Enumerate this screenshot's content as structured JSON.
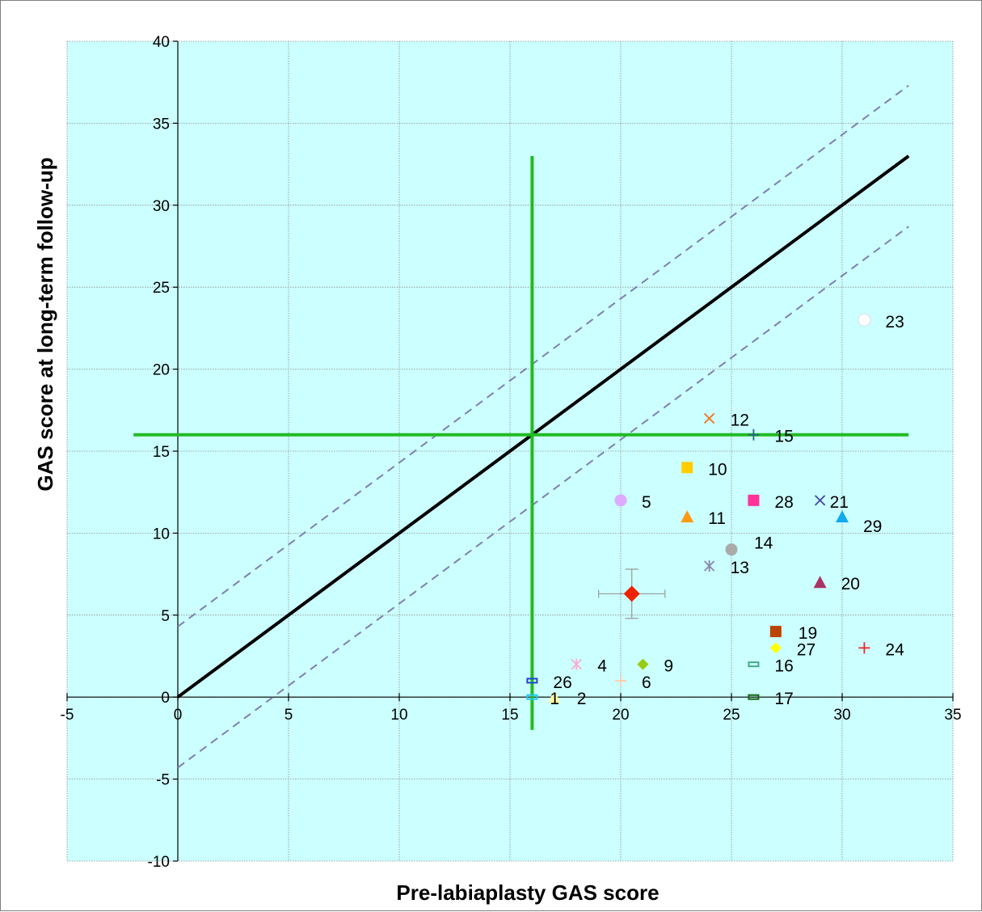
{
  "chart_data": {
    "type": "scatter",
    "xlabel": "Pre-labiaplasty GAS score",
    "ylabel": "GAS score at long-term follow-up",
    "xlim": [
      -5,
      35
    ],
    "ylim": [
      -10,
      40
    ],
    "xticks": [
      -5,
      0,
      5,
      10,
      15,
      20,
      25,
      30,
      35
    ],
    "yticks": [
      -10,
      -5,
      0,
      5,
      10,
      15,
      20,
      25,
      30,
      35,
      40
    ],
    "grid": true,
    "plot_background": "#ccffff",
    "reference_lines": [
      {
        "name": "identity",
        "x": [
          0,
          33
        ],
        "y": [
          0,
          33
        ],
        "style": "solid",
        "color": "#000000"
      },
      {
        "name": "upper-limit",
        "x": [
          0,
          33
        ],
        "y": [
          4.3,
          37.3
        ],
        "style": "dashed",
        "color": "#7f7fb0"
      },
      {
        "name": "lower-limit",
        "x": [
          0,
          33
        ],
        "y": [
          -4.3,
          28.7
        ],
        "style": "dashed",
        "color": "#7f7fb0"
      },
      {
        "name": "cutoff-vertical",
        "x": [
          16,
          16
        ],
        "y": [
          -2,
          33
        ],
        "style": "solid",
        "color": "#22bb22"
      },
      {
        "name": "cutoff-horizontal",
        "x": [
          -2,
          33
        ],
        "y": [
          16,
          16
        ],
        "style": "solid",
        "color": "#22bb22"
      }
    ],
    "mean_point": {
      "x": 20.5,
      "y": 6.3,
      "x_err": 1.5,
      "y_err": 1.5,
      "color": "#ee2200",
      "marker": "diamond"
    },
    "points": [
      {
        "label": "1",
        "x": 16,
        "y": 0,
        "color": "#22ccee",
        "marker": "dash"
      },
      {
        "label": "2",
        "x": 17,
        "y": 0,
        "color": "#ffffaa",
        "marker": "triangle"
      },
      {
        "label": "4",
        "x": 18,
        "y": 2,
        "color": "#ffaacc",
        "marker": "star"
      },
      {
        "label": "5",
        "x": 20,
        "y": 12,
        "color": "#ddaaff",
        "marker": "circle"
      },
      {
        "label": "6",
        "x": 20,
        "y": 1,
        "color": "#ffccaa",
        "marker": "plus"
      },
      {
        "label": "9",
        "x": 21,
        "y": 2,
        "color": "#99cc11",
        "marker": "diamond"
      },
      {
        "label": "10",
        "x": 23,
        "y": 14,
        "color": "#ffcc00",
        "marker": "square"
      },
      {
        "label": "11",
        "x": 23,
        "y": 11,
        "color": "#ff9911",
        "marker": "triangle"
      },
      {
        "label": "12",
        "x": 24,
        "y": 17,
        "color": "#ee7722",
        "marker": "x"
      },
      {
        "label": "13",
        "x": 24,
        "y": 8,
        "color": "#8888aa",
        "marker": "star"
      },
      {
        "label": "14",
        "x": 25,
        "y": 9,
        "color": "#aaaaaa",
        "marker": "circle"
      },
      {
        "label": "15",
        "x": 26,
        "y": 16,
        "color": "#226688",
        "marker": "plus"
      },
      {
        "label": "16",
        "x": 26,
        "y": 2,
        "color": "#44aa88",
        "marker": "dash"
      },
      {
        "label": "17",
        "x": 26,
        "y": 0,
        "color": "#116611",
        "marker": "dash"
      },
      {
        "label": "19",
        "x": 27,
        "y": 4,
        "color": "#bb4400",
        "marker": "square"
      },
      {
        "label": "20",
        "x": 29,
        "y": 7,
        "color": "#aa3366",
        "marker": "triangle"
      },
      {
        "label": "21",
        "x": 29,
        "y": 12,
        "color": "#444499",
        "marker": "x"
      },
      {
        "label": "23",
        "x": 31,
        "y": 23,
        "color": "#ffffff",
        "marker": "circle"
      },
      {
        "label": "24",
        "x": 31,
        "y": 3,
        "color": "#ee2222",
        "marker": "plus"
      },
      {
        "label": "26",
        "x": 16,
        "y": 1,
        "color": "#2244cc",
        "marker": "dash"
      },
      {
        "label": "27",
        "x": 27,
        "y": 3,
        "color": "#ffff00",
        "marker": "diamond"
      },
      {
        "label": "28",
        "x": 26,
        "y": 12,
        "color": "#ff3399",
        "marker": "square"
      },
      {
        "label": "29",
        "x": 30,
        "y": 11,
        "color": "#11aaee",
        "marker": "triangle"
      }
    ]
  }
}
